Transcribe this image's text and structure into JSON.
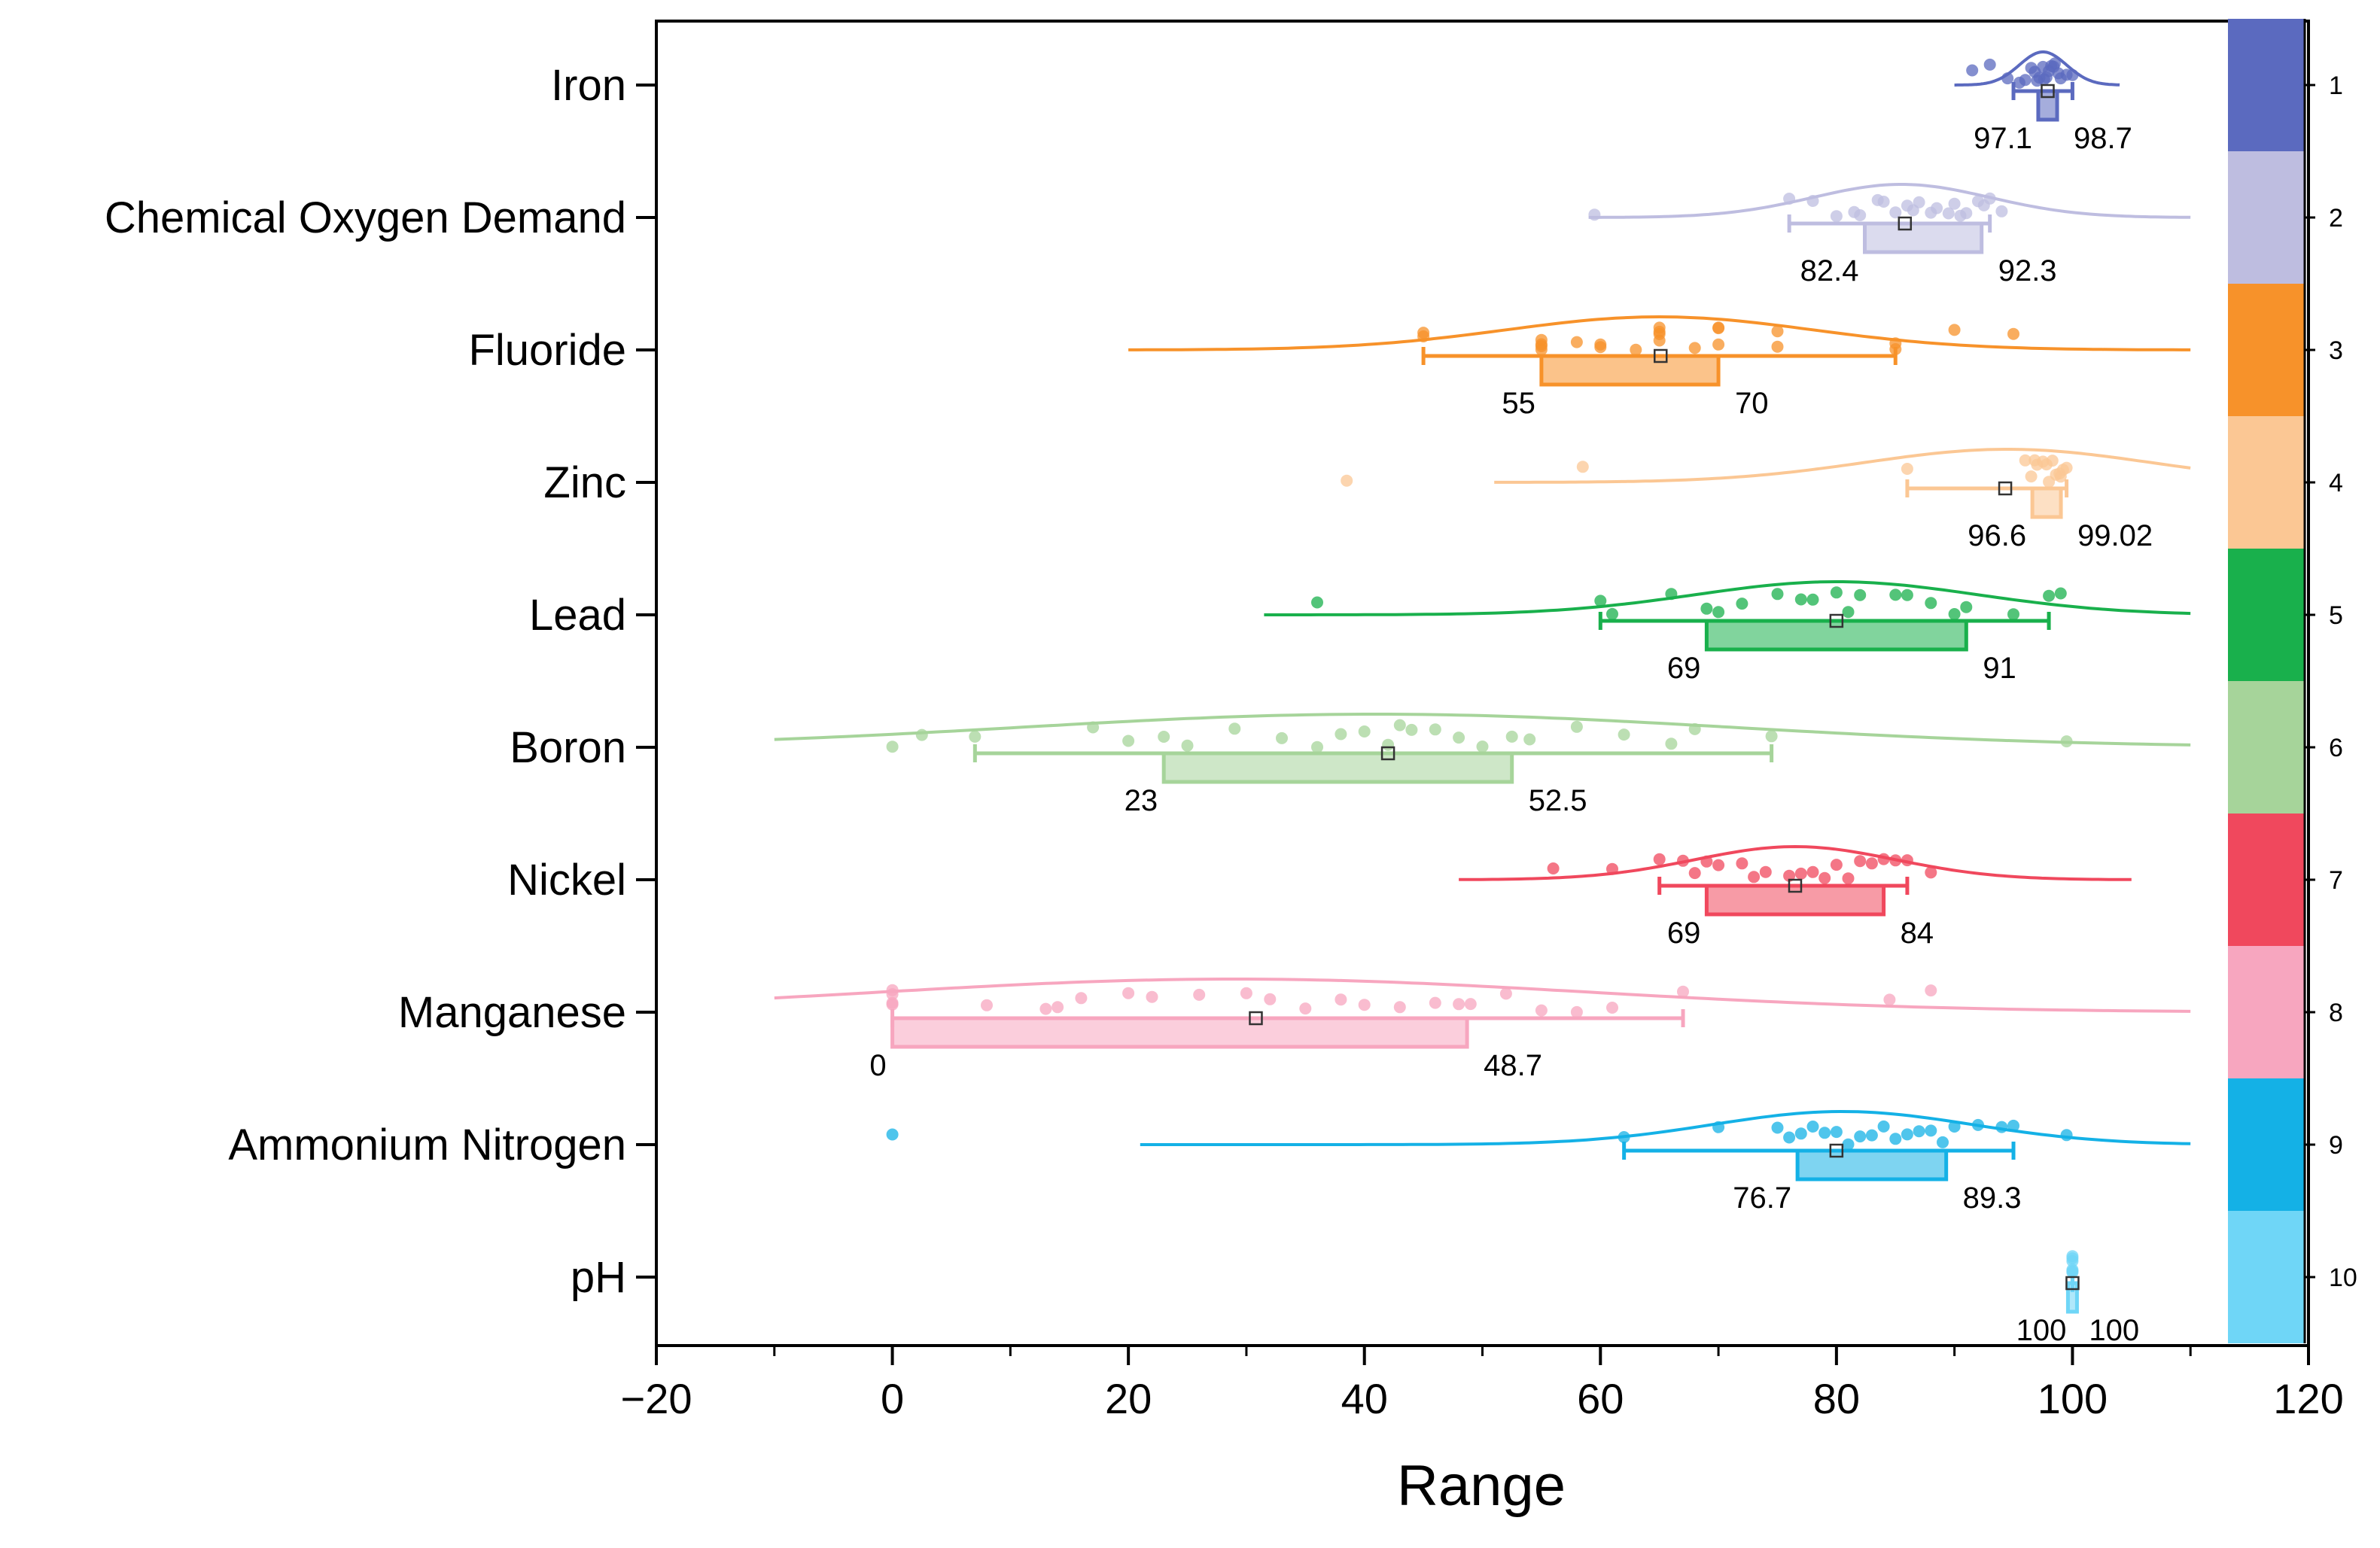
{
  "chart_data": {
    "type": "raincloud",
    "title": "",
    "xlabel": "Range",
    "ylabel": "",
    "xlim": [
      -20,
      120
    ],
    "xticks": [
      -20,
      0,
      20,
      40,
      60,
      80,
      100,
      120
    ],
    "xtick_labels": [
      "−20",
      "0",
      "20",
      "40",
      "60",
      "80",
      "100",
      "120"
    ],
    "grid": false,
    "legend_position": "right",
    "legend_labels": [
      "1",
      "2",
      "3",
      "4",
      "5",
      "6",
      "7",
      "8",
      "9",
      "10"
    ],
    "categories": [
      {
        "name": "Iron",
        "color": "#5b6abf",
        "q1": 97.1,
        "q3": 98.7,
        "q1_label": "97.1",
        "q3_label": "98.7",
        "mean": 97.9,
        "whisker_low": 95.0,
        "whisker_high": 100.0,
        "density_mean": 97.5,
        "density_sd": 2.0,
        "density_range": [
          90,
          104
        ],
        "points": [
          91.5,
          93.0,
          94.5,
          95.5,
          96.0,
          96.5,
          97.0,
          97.2,
          97.5,
          97.8,
          98.0,
          98.2,
          98.5,
          98.8,
          99.0,
          99.5,
          100.0,
          96.8,
          97.6,
          98.4
        ]
      },
      {
        "name": "Chemical Oxygen Demand",
        "color": "#bebde0",
        "q1": 82.4,
        "q3": 92.3,
        "q1_label": "82.4",
        "q3_label": "92.3",
        "mean": 85.8,
        "whisker_low": 76.0,
        "whisker_high": 93.0,
        "density_mean": 85.5,
        "density_sd": 7.5,
        "density_range": [
          59,
          110
        ],
        "points": [
          59.5,
          76.0,
          78.0,
          80.0,
          81.5,
          82.0,
          83.5,
          85.0,
          86.0,
          87.0,
          88.0,
          88.5,
          89.5,
          90.0,
          91.0,
          92.0,
          93.0,
          94.0,
          84.0,
          86.5,
          90.5,
          92.5
        ]
      },
      {
        "name": "Fluoride",
        "color": "#f7922a",
        "q1": 55,
        "q3": 70,
        "q1_label": "55",
        "q3_label": "70",
        "mean": 65.1,
        "whisker_low": 45,
        "whisker_high": 85,
        "density_mean": 65,
        "density_sd": 13,
        "density_range": [
          20,
          110
        ],
        "points": [
          45,
          45,
          55,
          55,
          55,
          55,
          58,
          60,
          60,
          63,
          65,
          65,
          65,
          65,
          68,
          70,
          70,
          70,
          75,
          75,
          85,
          85,
          90,
          95
        ]
      },
      {
        "name": "Zinc",
        "color": "#fbc794",
        "q1": 96.6,
        "q3": 99.02,
        "q1_label": "96.6",
        "q3_label": "99.02",
        "mean": 94.3,
        "whisker_low": 86,
        "whisker_high": 99.5,
        "density_mean": 94.5,
        "density_sd": 12,
        "density_range": [
          51,
          110
        ],
        "points": [
          38.5,
          58.5,
          86.0,
          96.0,
          96.5,
          97.0,
          97.5,
          98.0,
          98.3,
          98.6,
          98.9,
          99.2,
          99.5,
          97.8,
          96.8,
          99.0
        ]
      },
      {
        "name": "Lead",
        "color": "#19b04c",
        "q1": 69,
        "q3": 91,
        "q1_label": "69",
        "q3_label": "91",
        "mean": 80,
        "whisker_low": 60,
        "whisker_high": 98,
        "density_mean": 80,
        "density_sd": 12,
        "density_range": [
          31.5,
          110
        ],
        "points": [
          36,
          60,
          61,
          66,
          69,
          70,
          72,
          75,
          77,
          78,
          80,
          81,
          82,
          85,
          86,
          88,
          90,
          91,
          95,
          98,
          99
        ]
      },
      {
        "name": "Boron",
        "color": "#a6d49a",
        "q1": 23,
        "q3": 52.5,
        "q1_label": "23",
        "q3_label": "52.5",
        "mean": 42,
        "whisker_low": 7,
        "whisker_high": 74.5,
        "density_mean": 41,
        "density_sd": 30,
        "density_range": [
          -10,
          110
        ],
        "points": [
          0,
          2.5,
          7,
          17,
          20,
          23,
          25,
          29,
          33,
          36,
          38,
          40,
          42,
          43,
          44,
          46,
          48,
          50,
          52.5,
          54,
          58,
          62,
          66,
          68,
          74.5,
          99.5
        ]
      },
      {
        "name": "Nickel",
        "color": "#f0485d",
        "q1": 69,
        "q3": 84,
        "q1_label": "69",
        "q3_label": "84",
        "mean": 76.5,
        "whisker_low": 65,
        "whisker_high": 86,
        "density_mean": 76.5,
        "density_sd": 8.5,
        "density_range": [
          48,
          105
        ],
        "points": [
          56,
          61,
          65,
          67,
          68,
          69,
          70,
          72,
          73,
          74,
          76,
          77,
          78,
          79,
          80,
          81,
          82,
          83,
          84,
          85,
          86,
          88
        ]
      },
      {
        "name": "Manganese",
        "color": "#f7a6bf",
        "q1": 0,
        "q3": 48.7,
        "q1_label": "0",
        "q3_label": "48.7",
        "mean": 30.8,
        "whisker_low": 0,
        "whisker_high": 67,
        "density_mean": 29,
        "density_sd": 30,
        "density_range": [
          -10,
          110
        ],
        "points": [
          0,
          0,
          0,
          0,
          8,
          13,
          14,
          16,
          20,
          22,
          26,
          30,
          32,
          35,
          38,
          40,
          43,
          46,
          48,
          49,
          52,
          55,
          58,
          61,
          67,
          84.5,
          88
        ]
      },
      {
        "name": "Ammonium Nitrogen",
        "color": "#14b1e6",
        "q1": 76.7,
        "q3": 89.3,
        "q1_label": "76.7",
        "q3_label": "89.3",
        "mean": 80,
        "whisker_low": 62,
        "whisker_high": 95,
        "density_mean": 80.5,
        "density_sd": 11,
        "density_range": [
          21,
          110
        ],
        "points": [
          0,
          62,
          70,
          75,
          76,
          77,
          78,
          79,
          80,
          81,
          82,
          83,
          84,
          85,
          86,
          87,
          88,
          89,
          90,
          92,
          94,
          95,
          99.5
        ]
      },
      {
        "name": "pH",
        "color": "#6fd6f7",
        "q1": 100,
        "q3": 100,
        "q1_label": "100",
        "q3_label": "100",
        "mean": 100,
        "whisker_low": 100,
        "whisker_high": 100,
        "density_mean": 100,
        "density_sd": 0,
        "density_range": [
          100,
          100
        ],
        "points": [
          100,
          100,
          100,
          100,
          100,
          100
        ]
      }
    ]
  }
}
